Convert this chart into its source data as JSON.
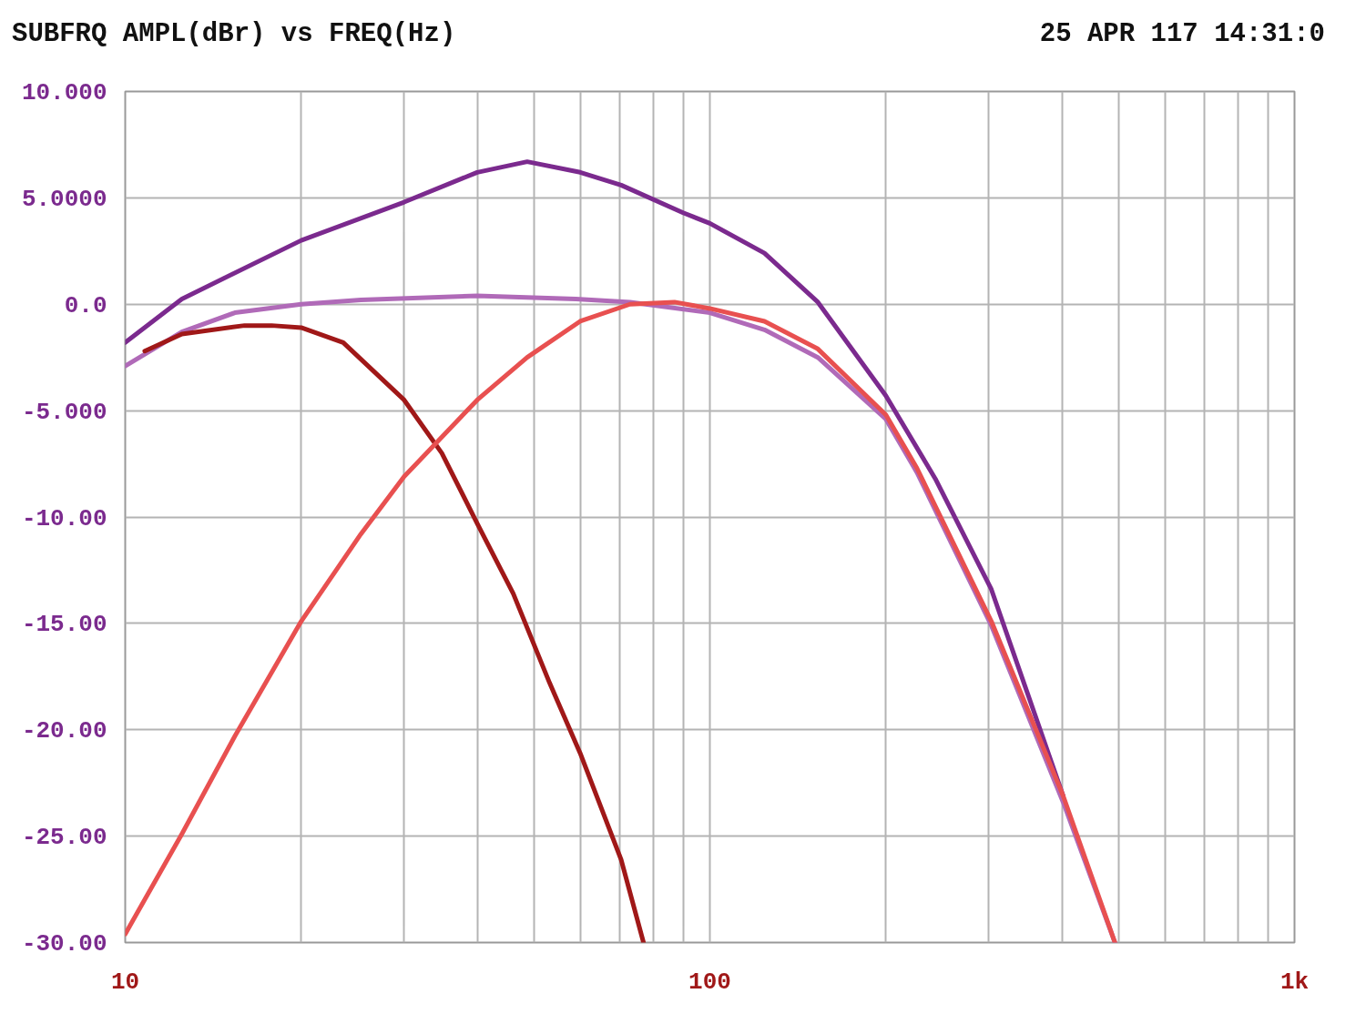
{
  "chart_data": {
    "type": "line",
    "title": "SUBFRQ AMPL(dBr) vs FREQ(Hz)",
    "annotations": [
      "25 APR 117 14:31:0"
    ],
    "log": "x",
    "grid": true,
    "line_style": "solid",
    "marker": "none",
    "xlim": [
      10,
      1000
    ],
    "ylim": [
      -30,
      10
    ],
    "xticks": [
      {
        "value": 10,
        "label": "10"
      },
      {
        "value": 20,
        "label": null
      },
      {
        "value": 30,
        "label": null
      },
      {
        "value": 40,
        "label": null
      },
      {
        "value": 50,
        "label": null
      },
      {
        "value": 60,
        "label": null
      },
      {
        "value": 70,
        "label": null
      },
      {
        "value": 80,
        "label": null
      },
      {
        "value": 90,
        "label": null
      },
      {
        "value": 100,
        "label": "100"
      },
      {
        "value": 200,
        "label": null
      },
      {
        "value": 300,
        "label": null
      },
      {
        "value": 400,
        "label": null
      },
      {
        "value": 500,
        "label": null
      },
      {
        "value": 600,
        "label": null
      },
      {
        "value": 700,
        "label": null
      },
      {
        "value": 800,
        "label": null
      },
      {
        "value": 900,
        "label": null
      },
      {
        "value": 1000,
        "label": "1k"
      }
    ],
    "yticks": [
      {
        "value": 10,
        "label": "10.000"
      },
      {
        "value": 5,
        "label": "5.0000"
      },
      {
        "value": 0,
        "label": "0.0"
      },
      {
        "value": -5,
        "label": "-5.000"
      },
      {
        "value": -10,
        "label": "-10.00"
      },
      {
        "value": -15,
        "label": "-15.00"
      },
      {
        "value": -20,
        "label": "-20.00"
      },
      {
        "value": -25,
        "label": "-25.00"
      },
      {
        "value": -30,
        "label": "-30.00"
      }
    ],
    "series": [
      {
        "color": "#7b2a8e",
        "x": [
          10,
          12.5,
          20,
          30,
          40,
          48.7,
          60,
          70.5,
          90,
          100,
          124,
          153,
          200,
          243,
          303,
          402
        ],
        "values": [
          -1.8,
          0.25,
          3.0,
          4.8,
          6.2,
          6.7,
          6.2,
          5.6,
          4.3,
          3.8,
          2.4,
          0.1,
          -4.3,
          -8.2,
          -13.4,
          -23.1
        ]
      },
      {
        "color": "#b06ab8",
        "x": [
          10,
          12.5,
          15.4,
          20,
          25.3,
          40,
          59,
          73,
          100,
          124,
          153,
          200,
          226,
          303,
          402,
          493
        ],
        "values": [
          -2.9,
          -1.3,
          -0.4,
          0,
          0.2,
          0.4,
          0.25,
          0.1,
          -0.4,
          -1.2,
          -2.5,
          -5.4,
          -7.9,
          -15.1,
          -23.4,
          -30
        ]
      },
      {
        "color": "#a01818",
        "x": [
          10.8,
          12.5,
          16,
          17.8,
          20,
          23.6,
          30,
          34.8,
          40,
          46.1,
          53.2,
          60,
          70.5,
          77
        ],
        "values": [
          -2.2,
          -1.4,
          -1.0,
          -1.0,
          -1.1,
          -1.8,
          -4.5,
          -7.0,
          -10.3,
          -13.6,
          -17.8,
          -21.1,
          -26.1,
          -30
        ]
      },
      {
        "color": "#e85050",
        "x": [
          10,
          12.5,
          15.4,
          20,
          25.3,
          30,
          40,
          48.7,
          60,
          73,
          87,
          100,
          124,
          153,
          200,
          226,
          303,
          402,
          493
        ],
        "values": [
          -29.6,
          -24.9,
          -20.3,
          -14.9,
          -10.8,
          -8.1,
          -4.5,
          -2.5,
          -0.8,
          0,
          0.1,
          -0.2,
          -0.8,
          -2.1,
          -5.2,
          -7.7,
          -14.9,
          -23.1,
          -30
        ]
      }
    ]
  }
}
